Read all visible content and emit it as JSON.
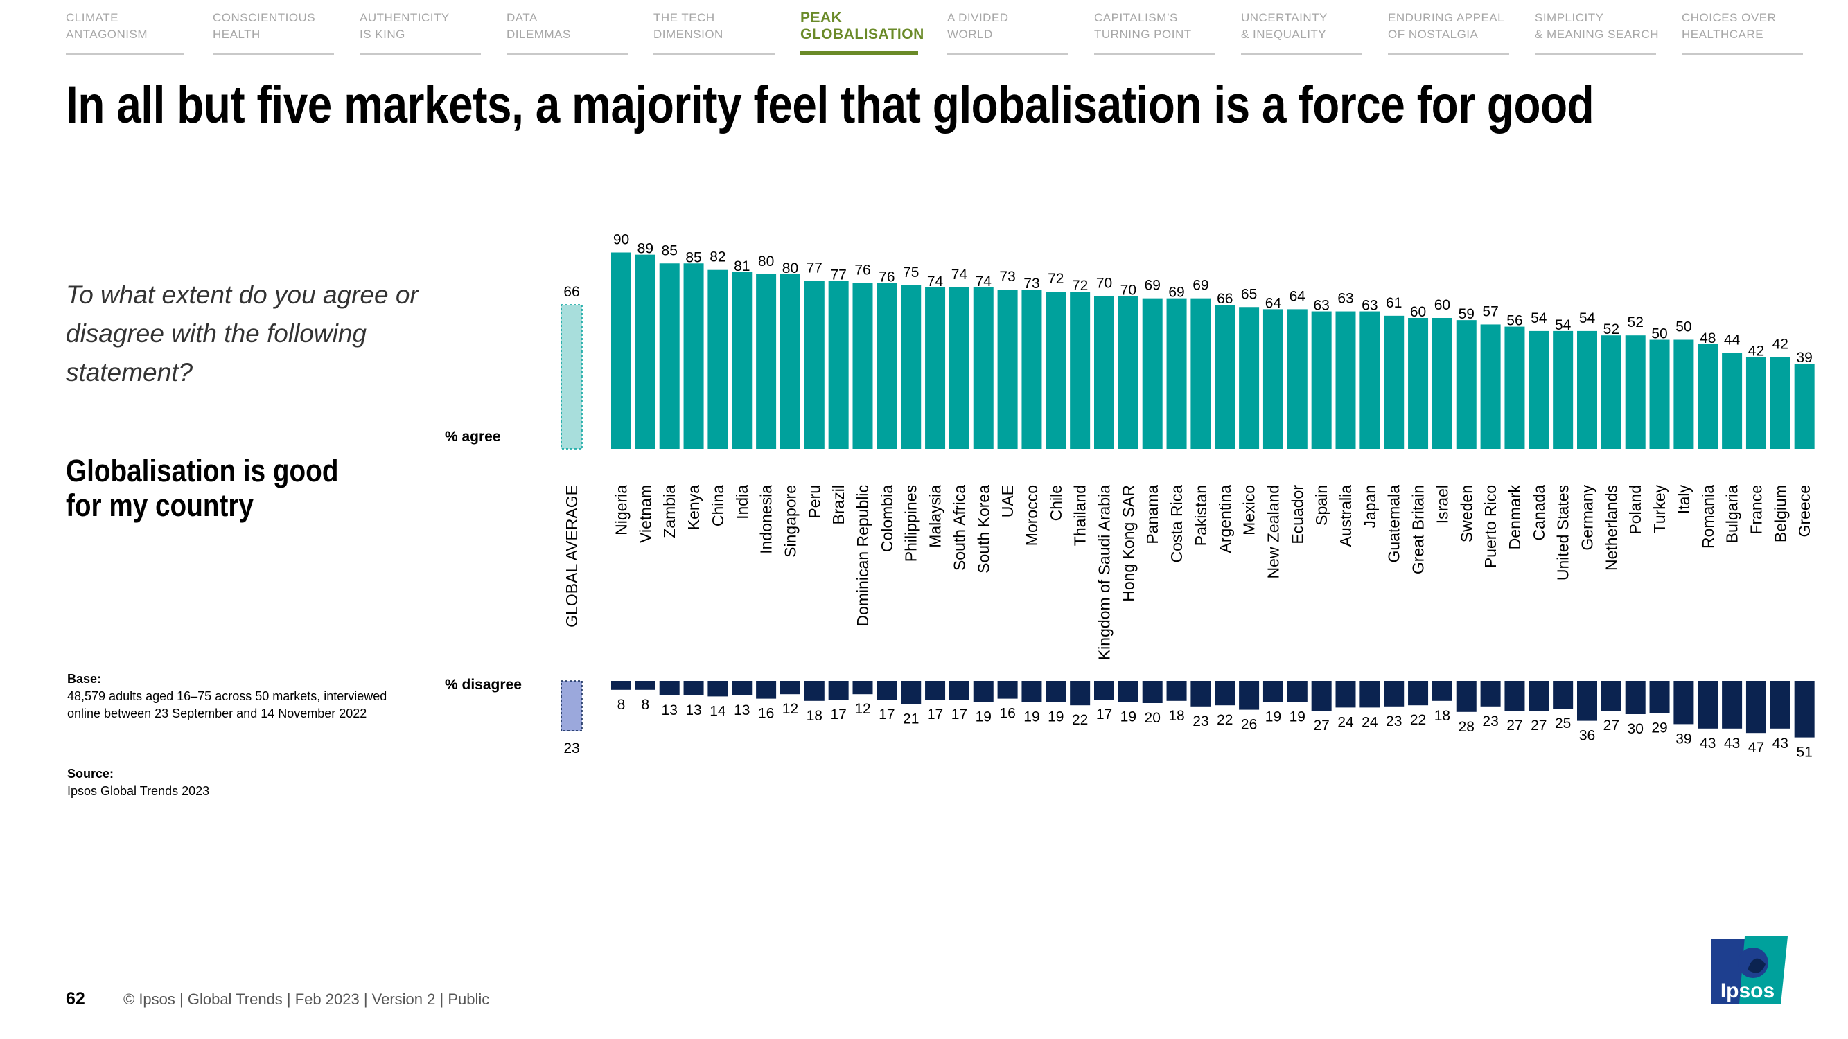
{
  "nav": {
    "tabs": [
      {
        "line1": "CLIMATE",
        "line2": "ANTAGONISM",
        "active": false
      },
      {
        "line1": "CONSCIENTIOUS",
        "line2": "HEALTH",
        "active": false
      },
      {
        "line1": "AUTHENTICITY",
        "line2": "IS KING",
        "active": false
      },
      {
        "line1": "DATA",
        "line2": "DILEMMAS",
        "active": false
      },
      {
        "line1": "THE TECH",
        "line2": "DIMENSION",
        "active": false
      },
      {
        "line1": "PEAK",
        "line2": "GLOBALISATION",
        "active": true
      },
      {
        "line1": "A DIVIDED",
        "line2": "WORLD",
        "active": false
      },
      {
        "line1": "CAPITALISM’S",
        "line2": "TURNING POINT",
        "active": false
      },
      {
        "line1": "UNCERTAINTY",
        "line2": "& INEQUALITY",
        "active": false
      },
      {
        "line1": "ENDURING APPEAL",
        "line2": "OF NOSTALGIA",
        "active": false
      },
      {
        "line1": "SIMPLICITY",
        "line2": "& MEANING SEARCH",
        "active": false
      },
      {
        "line1": "CHOICES OVER",
        "line2": "HEALTHCARE",
        "active": false
      }
    ]
  },
  "title": "In all but five markets, a majority feel that globalisation is a force for good",
  "question": "To what extent do you agree or disagree with the following statement?",
  "statement": "Globalisation is good for my country",
  "base": {
    "heading": "Base:",
    "text": "48,579 adults aged 16–75 across 50 markets, interviewed online between 23 September and 14 November 2022"
  },
  "source": {
    "heading": "Source:",
    "text": "Ipsos Global Trends 2023"
  },
  "footer": {
    "page": "62",
    "text": "© Ipsos | Global Trends | Feb 2023 | Version 2 | Public"
  },
  "logo_text": "Ipsos",
  "colors": {
    "agree": "#00a19c",
    "disagree": "#0b2350",
    "avg_agree": "#a8dedc",
    "avg_disagree": "#9ba8dc",
    "nav_active": "#6a8a28"
  },
  "chart_data": {
    "type": "bar",
    "title": "Globalisation is good for my country",
    "series_labels": {
      "agree": "% agree",
      "disagree": "% disagree"
    },
    "average": {
      "label": "GLOBAL AVERAGE",
      "agree": 66,
      "disagree": 23
    },
    "categories": [
      "Nigeria",
      "Vietnam",
      "Zambia",
      "Kenya",
      "China",
      "India",
      "Indonesia",
      "Singapore",
      "Peru",
      "Brazil",
      "Dominican Republic",
      "Colombia",
      "Philippines",
      "Malaysia",
      "South Africa",
      "South Korea",
      "UAE",
      "Morocco",
      "Chile",
      "Thailand",
      "Kingdom of Saudi Arabia",
      "Hong Kong SAR",
      "Panama",
      "Costa Rica",
      "Pakistan",
      "Argentina",
      "Mexico",
      "New Zealand",
      "Ecuador",
      "Spain",
      "Australia",
      "Japan",
      "Guatemala",
      "Great Britain",
      "Israel",
      "Sweden",
      "Puerto Rico",
      "Denmark",
      "Canada",
      "United States",
      "Germany",
      "Netherlands",
      "Poland",
      "Turkey",
      "Italy",
      "Romania",
      "Bulgaria",
      "France",
      "Belgium",
      "Greece"
    ],
    "series": [
      {
        "name": "% agree",
        "values": [
          90,
          89,
          85,
          85,
          82,
          81,
          80,
          80,
          77,
          77,
          76,
          76,
          75,
          74,
          74,
          74,
          73,
          73,
          72,
          72,
          70,
          70,
          69,
          69,
          69,
          66,
          65,
          64,
          64,
          63,
          63,
          63,
          61,
          60,
          60,
          59,
          57,
          56,
          54,
          54,
          54,
          52,
          52,
          50,
          50,
          48,
          44,
          42,
          42,
          39
        ]
      },
      {
        "name": "% disagree",
        "values": [
          8,
          8,
          13,
          13,
          14,
          13,
          16,
          12,
          18,
          17,
          12,
          17,
          21,
          17,
          17,
          19,
          16,
          19,
          19,
          22,
          17,
          19,
          20,
          18,
          23,
          22,
          26,
          19,
          19,
          27,
          24,
          24,
          23,
          22,
          18,
          28,
          23,
          27,
          27,
          25,
          36,
          27,
          30,
          29,
          39,
          43,
          43,
          47,
          43,
          51
        ]
      }
    ],
    "ylim": [
      0,
      100
    ]
  }
}
